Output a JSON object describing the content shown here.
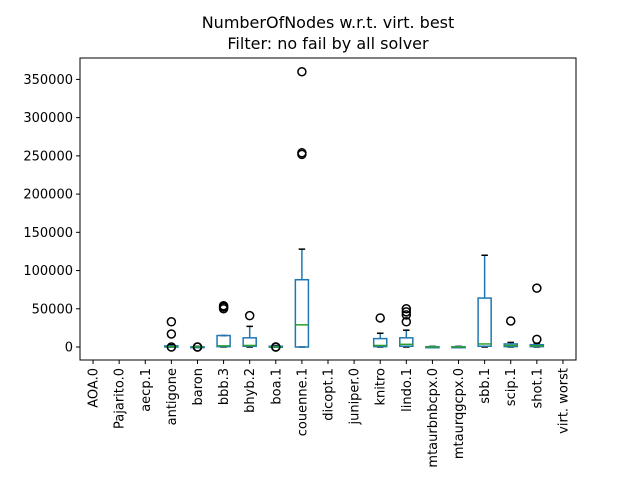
{
  "chart_data": {
    "type": "boxplot",
    "title": "NumberOfNodes w.r.t. virt. best",
    "subtitle": "Filter: no fail by all solver",
    "xlabel": "",
    "ylabel": "",
    "ylim": [
      -17000,
      378000
    ],
    "y_ticks": [
      0,
      50000,
      100000,
      150000,
      200000,
      250000,
      300000,
      350000
    ],
    "grid": false,
    "colors": {
      "box": "#1f77b4",
      "median": "#2ca02c",
      "whisker": "#000000",
      "flier": "#000000"
    },
    "categories": [
      "AOA.0",
      "Pajarito.0",
      "aecp.1",
      "antigone",
      "baron",
      "bbb.3",
      "bhyb.2",
      "boa.1",
      "couenne.1",
      "dicopt.1",
      "juniper.0",
      "knitro",
      "lindo.1",
      "mtaurbnbcpx.0",
      "mtaurqgcpx.0",
      "sbb.1",
      "scip.1",
      "shot.1",
      "virt. worst"
    ],
    "boxes": [
      null,
      null,
      null,
      {
        "whislo": 0,
        "q1": 0,
        "med": 500,
        "q3": 1500,
        "whishi": 3000,
        "fliers": [
          17000,
          33000,
          0
        ]
      },
      {
        "whislo": 0,
        "q1": 0,
        "med": 100,
        "q3": 400,
        "whishi": 800,
        "fliers": [
          0,
          0
        ]
      },
      {
        "whislo": 0,
        "q1": 500,
        "med": 1500,
        "q3": 15000,
        "whishi": 15000,
        "fliers": [
          50000,
          52000,
          53000,
          54000
        ]
      },
      {
        "whislo": 0,
        "q1": 1000,
        "med": 2000,
        "q3": 12000,
        "whishi": 27000,
        "fliers": [
          41000
        ]
      },
      {
        "whislo": 0,
        "q1": 0,
        "med": 100,
        "q3": 1000,
        "whishi": 2000,
        "fliers": [
          0,
          0
        ]
      },
      {
        "whislo": 0,
        "q1": 0,
        "med": 29000,
        "q3": 88000,
        "whishi": 128000,
        "fliers": [
          252000,
          254000,
          360000
        ]
      },
      null,
      null,
      {
        "whislo": 0,
        "q1": 500,
        "med": 2000,
        "q3": 11000,
        "whishi": 18000,
        "fliers": [
          38000
        ]
      },
      {
        "whislo": 0,
        "q1": 1000,
        "med": 3500,
        "q3": 12000,
        "whishi": 22000,
        "fliers": [
          33000,
          42000,
          46000,
          50000
        ]
      },
      {
        "whislo": 0,
        "q1": 0,
        "med": 100,
        "q3": 400,
        "whishi": 800,
        "fliers": []
      },
      {
        "whislo": 0,
        "q1": 0,
        "med": 100,
        "q3": 400,
        "whishi": 800,
        "fliers": []
      },
      {
        "whislo": 0,
        "q1": 1000,
        "med": 4000,
        "q3": 64000,
        "whishi": 120000,
        "fliers": []
      },
      {
        "whislo": 0,
        "q1": 500,
        "med": 2000,
        "q3": 4000,
        "whishi": 6000,
        "fliers": [
          34000
        ]
      },
      {
        "whislo": 0,
        "q1": 500,
        "med": 1500,
        "q3": 3000,
        "whishi": 5000,
        "fliers": [
          10000,
          77000
        ]
      },
      null
    ]
  }
}
